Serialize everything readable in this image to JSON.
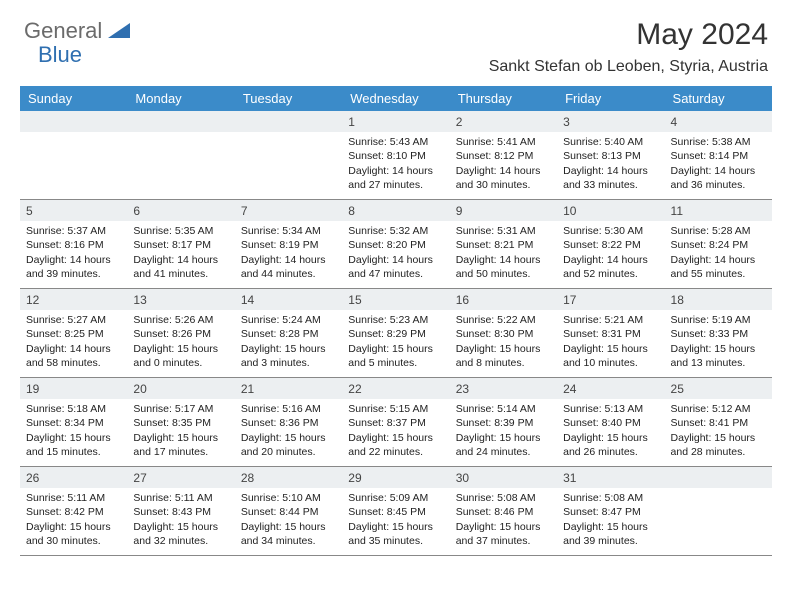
{
  "brand": {
    "part1": "General",
    "part2": "Blue"
  },
  "title": "May 2024",
  "location": "Sankt Stefan ob Leoben, Styria, Austria",
  "colors": {
    "header_bg": "#3b8bc9",
    "daynum_bg": "#eceff1",
    "brand_gray": "#6b6b6b",
    "brand_blue": "#2f6fb0",
    "border": "#888888"
  },
  "dayNames": [
    "Sunday",
    "Monday",
    "Tuesday",
    "Wednesday",
    "Thursday",
    "Friday",
    "Saturday"
  ],
  "weeks": [
    [
      null,
      null,
      null,
      {
        "n": "1",
        "sr": "5:43 AM",
        "ss": "8:10 PM",
        "dl": "14 hours and 27 minutes."
      },
      {
        "n": "2",
        "sr": "5:41 AM",
        "ss": "8:12 PM",
        "dl": "14 hours and 30 minutes."
      },
      {
        "n": "3",
        "sr": "5:40 AM",
        "ss": "8:13 PM",
        "dl": "14 hours and 33 minutes."
      },
      {
        "n": "4",
        "sr": "5:38 AM",
        "ss": "8:14 PM",
        "dl": "14 hours and 36 minutes."
      }
    ],
    [
      {
        "n": "5",
        "sr": "5:37 AM",
        "ss": "8:16 PM",
        "dl": "14 hours and 39 minutes."
      },
      {
        "n": "6",
        "sr": "5:35 AM",
        "ss": "8:17 PM",
        "dl": "14 hours and 41 minutes."
      },
      {
        "n": "7",
        "sr": "5:34 AM",
        "ss": "8:19 PM",
        "dl": "14 hours and 44 minutes."
      },
      {
        "n": "8",
        "sr": "5:32 AM",
        "ss": "8:20 PM",
        "dl": "14 hours and 47 minutes."
      },
      {
        "n": "9",
        "sr": "5:31 AM",
        "ss": "8:21 PM",
        "dl": "14 hours and 50 minutes."
      },
      {
        "n": "10",
        "sr": "5:30 AM",
        "ss": "8:22 PM",
        "dl": "14 hours and 52 minutes."
      },
      {
        "n": "11",
        "sr": "5:28 AM",
        "ss": "8:24 PM",
        "dl": "14 hours and 55 minutes."
      }
    ],
    [
      {
        "n": "12",
        "sr": "5:27 AM",
        "ss": "8:25 PM",
        "dl": "14 hours and 58 minutes."
      },
      {
        "n": "13",
        "sr": "5:26 AM",
        "ss": "8:26 PM",
        "dl": "15 hours and 0 minutes."
      },
      {
        "n": "14",
        "sr": "5:24 AM",
        "ss": "8:28 PM",
        "dl": "15 hours and 3 minutes."
      },
      {
        "n": "15",
        "sr": "5:23 AM",
        "ss": "8:29 PM",
        "dl": "15 hours and 5 minutes."
      },
      {
        "n": "16",
        "sr": "5:22 AM",
        "ss": "8:30 PM",
        "dl": "15 hours and 8 minutes."
      },
      {
        "n": "17",
        "sr": "5:21 AM",
        "ss": "8:31 PM",
        "dl": "15 hours and 10 minutes."
      },
      {
        "n": "18",
        "sr": "5:19 AM",
        "ss": "8:33 PM",
        "dl": "15 hours and 13 minutes."
      }
    ],
    [
      {
        "n": "19",
        "sr": "5:18 AM",
        "ss": "8:34 PM",
        "dl": "15 hours and 15 minutes."
      },
      {
        "n": "20",
        "sr": "5:17 AM",
        "ss": "8:35 PM",
        "dl": "15 hours and 17 minutes."
      },
      {
        "n": "21",
        "sr": "5:16 AM",
        "ss": "8:36 PM",
        "dl": "15 hours and 20 minutes."
      },
      {
        "n": "22",
        "sr": "5:15 AM",
        "ss": "8:37 PM",
        "dl": "15 hours and 22 minutes."
      },
      {
        "n": "23",
        "sr": "5:14 AM",
        "ss": "8:39 PM",
        "dl": "15 hours and 24 minutes."
      },
      {
        "n": "24",
        "sr": "5:13 AM",
        "ss": "8:40 PM",
        "dl": "15 hours and 26 minutes."
      },
      {
        "n": "25",
        "sr": "5:12 AM",
        "ss": "8:41 PM",
        "dl": "15 hours and 28 minutes."
      }
    ],
    [
      {
        "n": "26",
        "sr": "5:11 AM",
        "ss": "8:42 PM",
        "dl": "15 hours and 30 minutes."
      },
      {
        "n": "27",
        "sr": "5:11 AM",
        "ss": "8:43 PM",
        "dl": "15 hours and 32 minutes."
      },
      {
        "n": "28",
        "sr": "5:10 AM",
        "ss": "8:44 PM",
        "dl": "15 hours and 34 minutes."
      },
      {
        "n": "29",
        "sr": "5:09 AM",
        "ss": "8:45 PM",
        "dl": "15 hours and 35 minutes."
      },
      {
        "n": "30",
        "sr": "5:08 AM",
        "ss": "8:46 PM",
        "dl": "15 hours and 37 minutes."
      },
      {
        "n": "31",
        "sr": "5:08 AM",
        "ss": "8:47 PM",
        "dl": "15 hours and 39 minutes."
      },
      null
    ]
  ],
  "labels": {
    "sunrise": "Sunrise:",
    "sunset": "Sunset:",
    "daylight": "Daylight:"
  }
}
